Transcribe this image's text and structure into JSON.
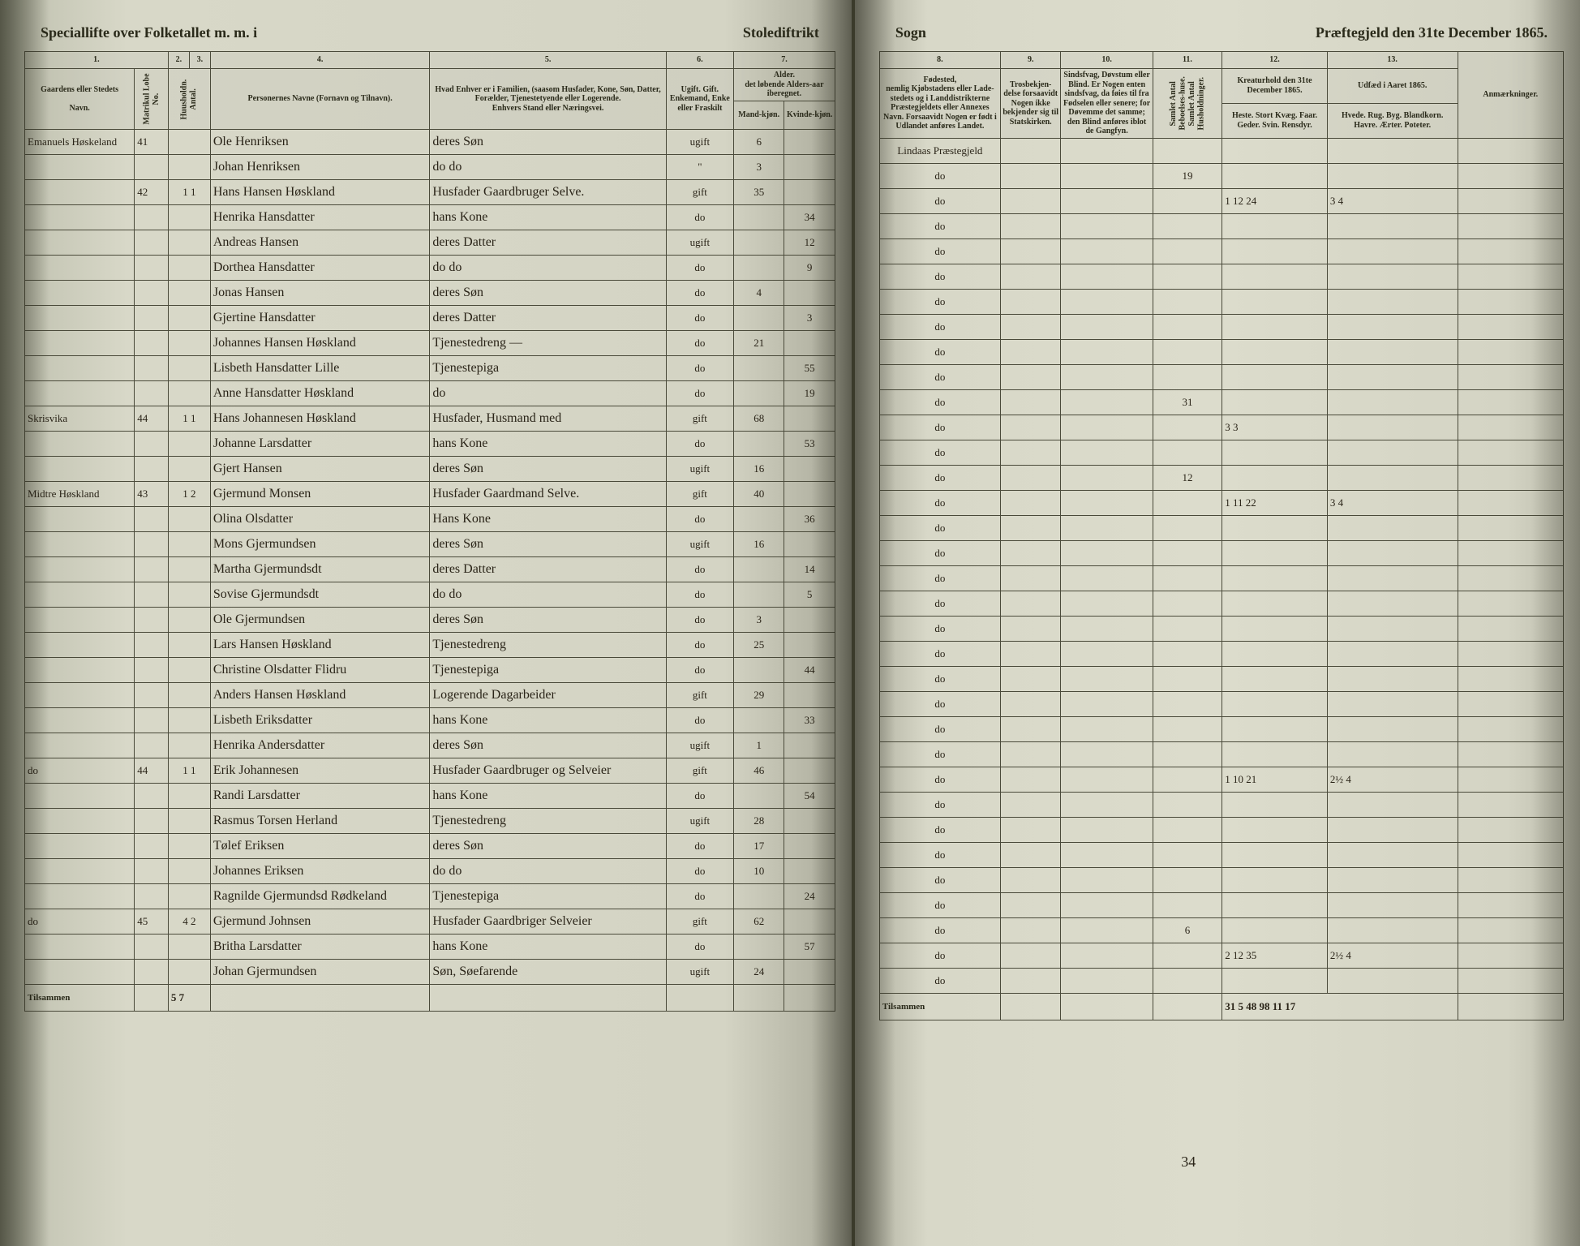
{
  "document": {
    "type": "table",
    "title_left_a": "Speciallifte over Folketallet m. m. i",
    "title_left_b": "Stolediftrikt",
    "title_right_a": "Sogn",
    "title_right_b": "Præftegjeld den 31te December 1865.",
    "background_color": "#d8d8c8",
    "ink_color": "#2a2418",
    "rule_color": "#4a4a3a"
  },
  "left": {
    "col_nums": [
      "1.",
      "2.",
      "3.",
      "4.",
      "5.",
      "6.",
      "7."
    ],
    "h": {
      "c1a": "Gaardens eller Stedets",
      "c1b": "Navn.",
      "c1c": "Matrikul Lobe No.",
      "c23": "Huusholdn. Antal.",
      "c4": "Personernes Navne (Fornavn og Tilnavn).",
      "c5a": "Hvad Enhver er i Familien, (saasom Husfader, Kone, Søn, Datter, Forælder, Tjenestetyende eller Logerende.",
      "c5b": "Enhvers Stand eller Næringsvei.",
      "c6": "Ugift. Gift. Enkemand, Enke eller Fraskilt",
      "c7a": "Alder.",
      "c7b": "det løbende Alders-aar iberegnet.",
      "c7c": "Mand-kjøn.",
      "c7d": "Kvinde-kjøn."
    },
    "footer_label": "Tilsammen",
    "footer_val": "5 7",
    "rows": [
      {
        "place": "Emanuels Høskeland",
        "mat": "41",
        "name": "Ole Henriksen",
        "role": "deres Søn",
        "stat": "ugift",
        "m": "6",
        "k": ""
      },
      {
        "place": "",
        "mat": "",
        "name": "Johan Henriksen",
        "role": "do   do",
        "stat": "\"",
        "m": "3",
        "k": ""
      },
      {
        "place": "",
        "mat": "42",
        "hh": "1 1",
        "name": "Hans Hansen Høskland",
        "role": "Husfader Gaardbruger Selve.",
        "stat": "gift",
        "m": "35",
        "k": ""
      },
      {
        "place": "",
        "mat": "",
        "name": "Henrika Hansdatter",
        "role": "hans Kone",
        "stat": "do",
        "m": "",
        "k": "34"
      },
      {
        "place": "",
        "mat": "",
        "name": "Andreas Hansen",
        "role": "deres Datter",
        "stat": "ugift",
        "m": "",
        "k": "12"
      },
      {
        "place": "",
        "mat": "",
        "name": "Dorthea Hansdatter",
        "role": "do   do",
        "stat": "do",
        "m": "",
        "k": "9"
      },
      {
        "place": "",
        "mat": "",
        "name": "Jonas Hansen",
        "role": "deres Søn",
        "stat": "do",
        "m": "4",
        "k": ""
      },
      {
        "place": "",
        "mat": "",
        "name": "Gjertine Hansdatter",
        "role": "deres Datter",
        "stat": "do",
        "m": "",
        "k": "3"
      },
      {
        "place": "",
        "mat": "",
        "name": "Johannes Hansen Høskland",
        "role": "Tjenestedreng   —",
        "stat": "do",
        "m": "21",
        "k": ""
      },
      {
        "place": "",
        "mat": "",
        "name": "Lisbeth Hansdatter Lille",
        "role": "Tjenestepiga",
        "stat": "do",
        "m": "",
        "k": "55"
      },
      {
        "place": "",
        "mat": "",
        "name": "Anne Hansdatter Høskland",
        "role": "do",
        "stat": "do",
        "m": "",
        "k": "19"
      },
      {
        "place": "Skrisvika",
        "mat": "44",
        "hh": "1 1",
        "name": "Hans Johannesen Høskland",
        "role": "Husfader, Husmand med",
        "stat": "gift",
        "m": "68",
        "k": ""
      },
      {
        "place": "",
        "mat": "",
        "name": "Johanne Larsdatter",
        "role": "hans Kone",
        "stat": "do",
        "m": "",
        "k": "53"
      },
      {
        "place": "",
        "mat": "",
        "name": "Gjert Hansen",
        "role": "deres Søn",
        "stat": "ugift",
        "m": "16",
        "k": ""
      },
      {
        "place": "Midtre Høskland",
        "mat": "43",
        "hh": "1 2",
        "name": "Gjermund Monsen",
        "role": "Husfader Gaardmand Selve.",
        "stat": "gift",
        "m": "40",
        "k": ""
      },
      {
        "place": "",
        "mat": "",
        "name": "Olina Olsdatter",
        "role": "Hans Kone",
        "stat": "do",
        "m": "",
        "k": "36"
      },
      {
        "place": "",
        "mat": "",
        "name": "Mons Gjermundsen",
        "role": "deres Søn",
        "stat": "ugift",
        "m": "16",
        "k": ""
      },
      {
        "place": "",
        "mat": "",
        "name": "Martha Gjermundsdt",
        "role": "deres Datter",
        "stat": "do",
        "m": "",
        "k": "14"
      },
      {
        "place": "",
        "mat": "",
        "name": "Sovise Gjermundsdt",
        "role": "do   do",
        "stat": "do",
        "m": "",
        "k": "5"
      },
      {
        "place": "",
        "mat": "",
        "name": "Ole Gjermundsen",
        "role": "deres Søn",
        "stat": "do",
        "m": "3",
        "k": ""
      },
      {
        "place": "",
        "mat": "",
        "name": "Lars Hansen Høskland",
        "role": "Tjenestedreng",
        "stat": "do",
        "m": "25",
        "k": ""
      },
      {
        "place": "",
        "mat": "",
        "name": "Christine Olsdatter Flidru",
        "role": "Tjenestepiga",
        "stat": "do",
        "m": "",
        "k": "44"
      },
      {
        "place": "",
        "mat": "",
        "name": "Anders Hansen Høskland",
        "role": "Logerende Dagarbeider",
        "stat": "gift",
        "m": "29",
        "k": ""
      },
      {
        "place": "",
        "mat": "",
        "name": "Lisbeth Eriksdatter",
        "role": "hans Kone",
        "stat": "do",
        "m": "",
        "k": "33"
      },
      {
        "place": "",
        "mat": "",
        "name": "Henrika Andersdatter",
        "role": "deres Søn",
        "stat": "ugift",
        "m": "1",
        "k": ""
      },
      {
        "place": "do",
        "mat": "44",
        "hh": "1 1",
        "name": "Erik Johannesen",
        "role": "Husfader Gaardbruger og Selveier",
        "stat": "gift",
        "m": "46",
        "k": ""
      },
      {
        "place": "",
        "mat": "",
        "name": "Randi Larsdatter",
        "role": "hans Kone",
        "stat": "do",
        "m": "",
        "k": "54"
      },
      {
        "place": "",
        "mat": "",
        "name": "Rasmus Torsen Herland",
        "role": "Tjenestedreng",
        "stat": "ugift",
        "m": "28",
        "k": ""
      },
      {
        "place": "",
        "mat": "",
        "name": "Tølef Eriksen",
        "role": "deres Søn",
        "stat": "do",
        "m": "17",
        "k": ""
      },
      {
        "place": "",
        "mat": "",
        "name": "Johannes Eriksen",
        "role": "do   do",
        "stat": "do",
        "m": "10",
        "k": ""
      },
      {
        "place": "",
        "mat": "",
        "name": "Ragnilde Gjermundsd Rødkeland",
        "role": "Tjenestepiga",
        "stat": "do",
        "m": "",
        "k": "24"
      },
      {
        "place": "do",
        "mat": "45",
        "hh": "4 2",
        "name": "Gjermund Johnsen",
        "role": "Husfader Gaardbriger Selveier",
        "stat": "gift",
        "m": "62",
        "k": ""
      },
      {
        "place": "",
        "mat": "",
        "name": "Britha Larsdatter",
        "role": "hans Kone",
        "stat": "do",
        "m": "",
        "k": "57"
      },
      {
        "place": "",
        "mat": "",
        "name": "Johan Gjermundsen",
        "role": "Søn, Søefarende",
        "stat": "ugift",
        "m": "24",
        "k": ""
      }
    ]
  },
  "right": {
    "col_nums": [
      "8.",
      "9.",
      "10.",
      "11.",
      "12.",
      "13."
    ],
    "h": {
      "c8": "Fødested,\nnemlig Kjøbstadens eller Lade-stedets og i Landdistrikterne Præstegjeldets eller Annexes Navn. Forsaavidt Nogen er født i Udlandet anføres Landet.",
      "c9": "Trosbekjen-delse forsaavidt Nogen ikke bekjender sig til Statskirken.",
      "c10": "Sindsfvag, Døvstum eller Blind. Er Nogen enten sindsfvag, da føies til fra Fødselen eller senere; for Døvemme det samme; den Blind anføres iblot de Gangfyn.",
      "c11": "Samlet Antal Beboelses-huse. Samlet Antal Husholdninger.",
      "c12a": "Kreaturhold den 31te December 1865.",
      "c12b": "Heste. Stort Kvæg. Faar. Geder. Svin. Rensdyr.",
      "c13a": "Udfæd i Aaret 1865.",
      "c13b": "Hvede. Rug. Byg. Blandkorn. Havre. Ærter. Poteter.",
      "remarks": "Anmærkninger."
    },
    "rows": [
      {
        "c8": "Lindaas Præstegjeld"
      },
      {
        "c8": "do",
        "c11": "19"
      },
      {
        "c8": "do",
        "c12": "1 12 24",
        "c13": "3   4"
      },
      {
        "c8": "do"
      },
      {
        "c8": "do"
      },
      {
        "c8": "do"
      },
      {
        "c8": "do"
      },
      {
        "c8": "do"
      },
      {
        "c8": "do"
      },
      {
        "c8": "do"
      },
      {
        "c8": "do",
        "c11": "31"
      },
      {
        "c8": "do",
        "c12": "3 3"
      },
      {
        "c8": "do"
      },
      {
        "c8": "do",
        "c11": "12"
      },
      {
        "c8": "do",
        "c12": "1 11 22",
        "c13": "3   4"
      },
      {
        "c8": "do"
      },
      {
        "c8": "do"
      },
      {
        "c8": "do"
      },
      {
        "c8": "do"
      },
      {
        "c8": "do"
      },
      {
        "c8": "do"
      },
      {
        "c8": "do"
      },
      {
        "c8": "do"
      },
      {
        "c8": "do"
      },
      {
        "c8": "do"
      },
      {
        "c8": "do",
        "c12": "1 10 21",
        "c13": "2½  4"
      },
      {
        "c8": "do"
      },
      {
        "c8": "do"
      },
      {
        "c8": "do"
      },
      {
        "c8": "do"
      },
      {
        "c8": "do"
      },
      {
        "c8": "do",
        "c11": "6"
      },
      {
        "c8": "do",
        "c12": "2 12 35",
        "c13": "2½  4"
      },
      {
        "c8": "do"
      }
    ],
    "tally": "34",
    "footer_label": "Tilsammen",
    "footer_vals": "31 5 48 98         11   17"
  }
}
